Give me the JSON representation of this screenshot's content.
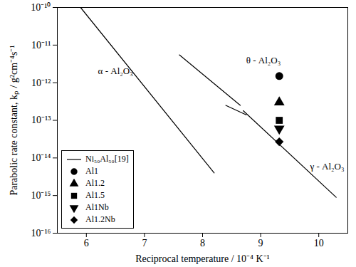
{
  "chart_data": {
    "type": "scatter",
    "x_label": "Reciprocal temperature / 10⁻⁴ K⁻¹",
    "y_label": "Parabolic rate constant, kₚ / g²cm⁻⁴s⁻¹",
    "xlim": [
      5.5,
      10.5
    ],
    "xticks": [
      6,
      7,
      8,
      9,
      10
    ],
    "ylim": [
      1e-16,
      1e-10
    ],
    "yticks": [
      {
        "value": 1e-16,
        "label": "10⁻¹⁶"
      },
      {
        "value": 1e-15,
        "label": "10⁻¹⁵"
      },
      {
        "value": 1e-14,
        "label": "10⁻¹⁴"
      },
      {
        "value": 1e-13,
        "label": "10⁻¹³"
      },
      {
        "value": 1e-12,
        "label": "10⁻¹²"
      },
      {
        "value": 1e-11,
        "label": "10⁻¹¹"
      },
      {
        "value": 1e-10,
        "label": "10⁻¹⁰"
      }
    ],
    "log": "y",
    "grid": false,
    "legend": "lower left",
    "series": [
      {
        "name": "Ni₅₀Al₅₀[19]",
        "type": "line",
        "color": "#000000",
        "line_style": "solid",
        "x": [
          5.9,
          8.2,
          null,
          7.6,
          8.65,
          null,
          8.4,
          8.75,
          null,
          8.7,
          10.3
        ],
        "values": [
          1e-10,
          4e-15,
          null,
          5.5e-12,
          2.5e-13,
          null,
          2.5e-13,
          1.4e-13,
          null,
          1.8e-13,
          9e-16
        ]
      },
      {
        "name": "Al1",
        "type": "scatter",
        "marker": "circle",
        "color": "#000000",
        "x": [
          9.32
        ],
        "values": [
          1.5e-12
        ]
      },
      {
        "name": "Al1.2",
        "type": "scatter",
        "marker": "triangle",
        "color": "#000000",
        "x": [
          9.32
        ],
        "values": [
          3e-13
        ]
      },
      {
        "name": "Al1.5",
        "type": "scatter",
        "marker": "square",
        "color": "#000000",
        "x": [
          9.32
        ],
        "values": [
          1e-13
        ]
      },
      {
        "name": "Al1Nb",
        "type": "scatter",
        "marker": "triangle-down",
        "color": "#000000",
        "x": [
          9.32
        ],
        "values": [
          6e-14
        ]
      },
      {
        "name": "Al1.2Nb",
        "type": "scatter",
        "marker": "diamond",
        "color": "#000000",
        "x": [
          9.32
        ],
        "values": [
          2.7e-14
        ]
      }
    ],
    "annotations": [
      {
        "text": "α - Al₂O₃",
        "x": 6.2,
        "y": 2e-12
      },
      {
        "text": "θ - Al₂O₃",
        "x": 8.75,
        "y": 4e-12
      },
      {
        "text": "γ - Al₂O₃",
        "x": 9.85,
        "y": 6e-15
      }
    ]
  }
}
